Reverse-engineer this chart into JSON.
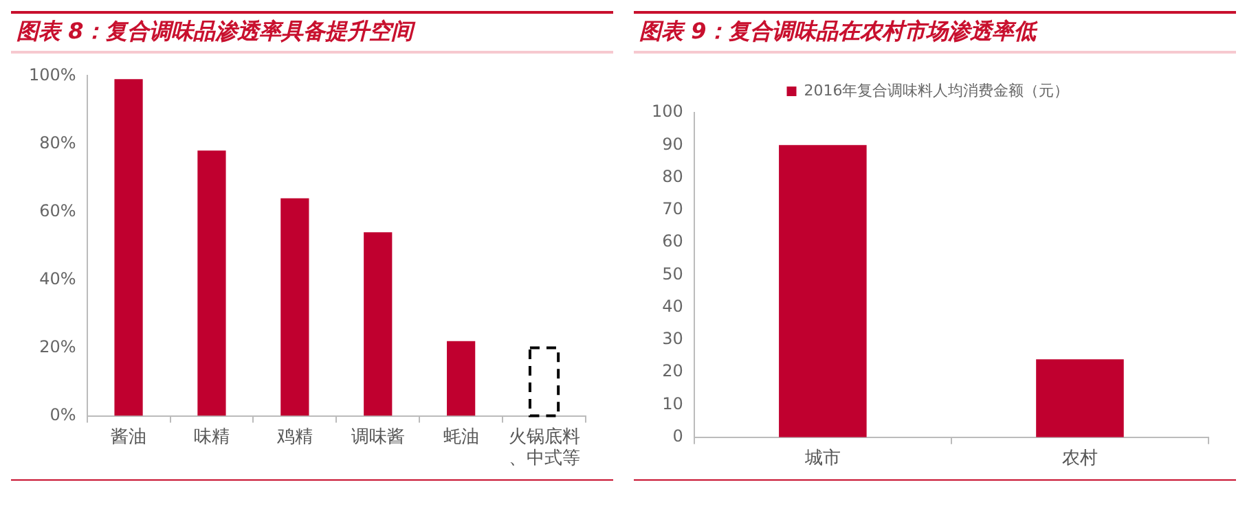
{
  "chart_data": [
    {
      "type": "bar",
      "title": "图表 8：复合调味品渗透率具备提升空间",
      "categories": [
        "酱油",
        "味精",
        "鸡精",
        "调味酱",
        "蚝油",
        "火锅底料、中式等"
      ],
      "series": [
        {
          "color": "#c0002f",
          "values": [
            99,
            78,
            64,
            54,
            22,
            null
          ]
        },
        {
          "color": "#000000",
          "line_style": "dashed",
          "values": [
            null,
            null,
            null,
            null,
            null,
            20
          ]
        }
      ],
      "ylim": [
        0,
        100
      ],
      "yticks": [
        {
          "value": 0,
          "label": "0%"
        },
        {
          "value": 20,
          "label": "20%"
        },
        {
          "value": 40,
          "label": "40%"
        },
        {
          "value": 60,
          "label": "60%"
        },
        {
          "value": 80,
          "label": "80%"
        },
        {
          "value": 100,
          "label": "100%"
        }
      ]
    },
    {
      "type": "bar",
      "title": "图表 9：复合调味品在农村市场渗透率低",
      "categories": [
        "城市",
        "农村"
      ],
      "series": [
        {
          "name": "2016年复合调味料人均消费金额（元）",
          "color": "#c0002f",
          "values": [
            90,
            24
          ]
        }
      ],
      "ylim": [
        0,
        100
      ],
      "yticks": [
        0,
        10,
        20,
        30,
        40,
        50,
        60,
        70,
        80,
        90,
        100
      ],
      "legend": "top"
    }
  ]
}
